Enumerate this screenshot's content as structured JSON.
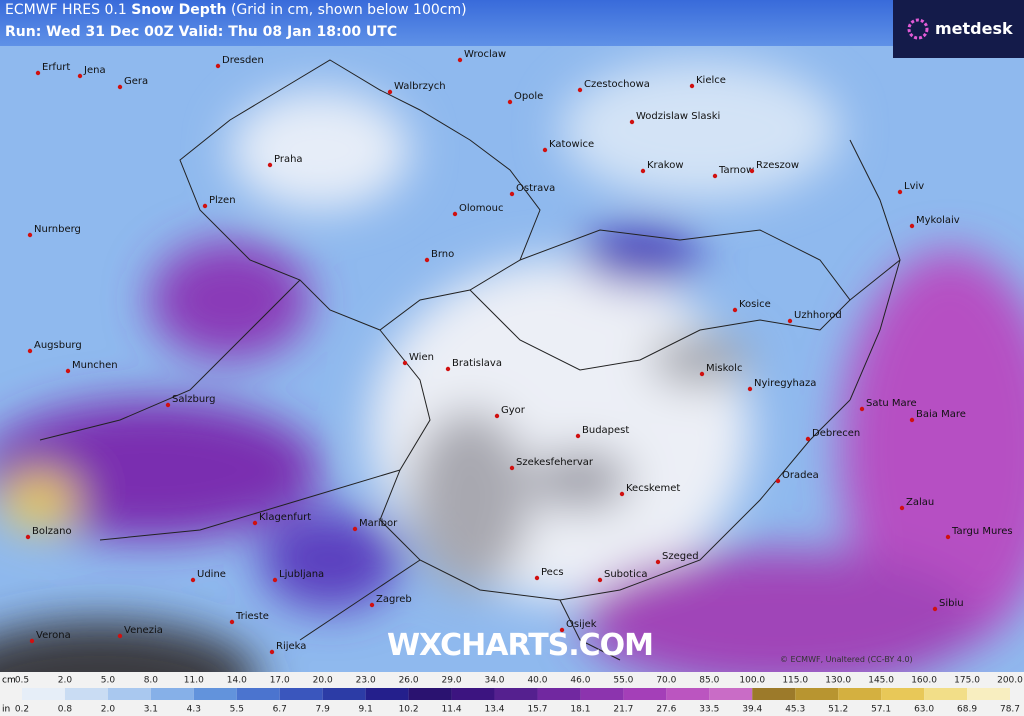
{
  "header": {
    "model": "ECMWF HRES 0.1",
    "variable": "Snow Depth",
    "note": "(Grid in cm, shown below 100cm)",
    "run": "Run: Wed 31 Dec 00Z Valid: Thu 08 Jan 18:00 UTC"
  },
  "logo": "metdesk",
  "watermark": "WXCHARTS.COM",
  "credit": "© ECMWF, Unaltered (CC-BY 4.0)",
  "cities": [
    "Wroclaw",
    "Erfurt",
    "Jena",
    "Dresden",
    "Gera",
    "Walbrzych",
    "Opole",
    "Czestochowa",
    "Kielce",
    "Wodzislaw Slaski",
    "Katowice",
    "Praha",
    "Krakow",
    "Tarnow",
    "Rzeszow",
    "Ostrava",
    "Plzen",
    "Olomouc",
    "Lviv",
    "Mykolaiv",
    "Nurnberg",
    "Brno",
    "Kosice",
    "Uzhhorod",
    "Augsburg",
    "Wien",
    "Bratislava",
    "Munchen",
    "Miskolc",
    "Nyiregyhaza",
    "Salzburg",
    "Gyor",
    "Budapest",
    "Debrecen",
    "Satu Mare",
    "Baia Mare",
    "Szekesfehervar",
    "Kecskemet",
    "Oradea",
    "Klagenfurt",
    "Maribor",
    "Bolzano",
    "Zalau",
    "Szeged",
    "Subotica",
    "Pecs",
    "Udine",
    "Ljubljana",
    "Zagreb",
    "Targu Mures",
    "Sibiu",
    "Verona",
    "Venezia",
    "Trieste",
    "Rijeka",
    "Osijek"
  ],
  "legend": {
    "cm_unit": "cm",
    "in_unit": "in",
    "cm": [
      "0.5",
      "2.0",
      "5.0",
      "8.0",
      "11.0",
      "14.0",
      "17.0",
      "20.0",
      "23.0",
      "26.0",
      "29.0",
      "34.0",
      "40.0",
      "46.0",
      "55.0",
      "70.0",
      "85.0",
      "100.0",
      "115.0",
      "130.0",
      "145.0",
      "160.0",
      "175.0",
      "200.0"
    ],
    "in": [
      "0.2",
      "0.8",
      "2.0",
      "3.1",
      "4.3",
      "5.5",
      "6.7",
      "7.9",
      "9.1",
      "10.2",
      "11.4",
      "13.4",
      "15.7",
      "18.1",
      "21.7",
      "27.6",
      "33.5",
      "39.4",
      "45.3",
      "51.2",
      "57.1",
      "63.0",
      "68.9",
      "78.7"
    ],
    "colors": [
      "#e6eef8",
      "#c9dcf3",
      "#a9c8ef",
      "#86b0e8",
      "#6293dc",
      "#4b74cf",
      "#3a56bd",
      "#2c3ca6",
      "#241f8c",
      "#2a1270",
      "#3c1480",
      "#55208f",
      "#7128a0",
      "#8c34ae",
      "#a43fb8",
      "#bb55c0",
      "#c96cc6",
      "#9c7a2a",
      "#b89530",
      "#d4b040",
      "#e8c858",
      "#f2de88",
      "#f8eec0"
    ]
  }
}
